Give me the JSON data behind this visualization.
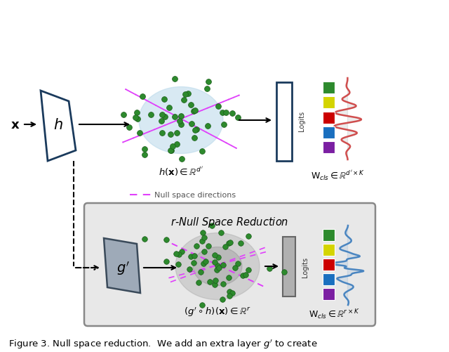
{
  "bg_color": "#ffffff",
  "top_box_color": "#1a3a5c",
  "green_dot_color": "#2d8a2d",
  "green_dot_edge": "#1a5c1a",
  "blue_glow_color": "#b8d8ea",
  "pink_dash_color": "#e040fb",
  "class_colors_top": [
    "#2d8a2d",
    "#d4d400",
    "#cc0000",
    "#1a6fbf",
    "#7b1fa2"
  ],
  "class_colors_bot": [
    "#2d8a2d",
    "#d4d400",
    "#cc0000",
    "#1a6fbf",
    "#7b1fa2"
  ],
  "caption": "Figure 3. Null space reduction.  We add an extra layer $g'$ to create"
}
